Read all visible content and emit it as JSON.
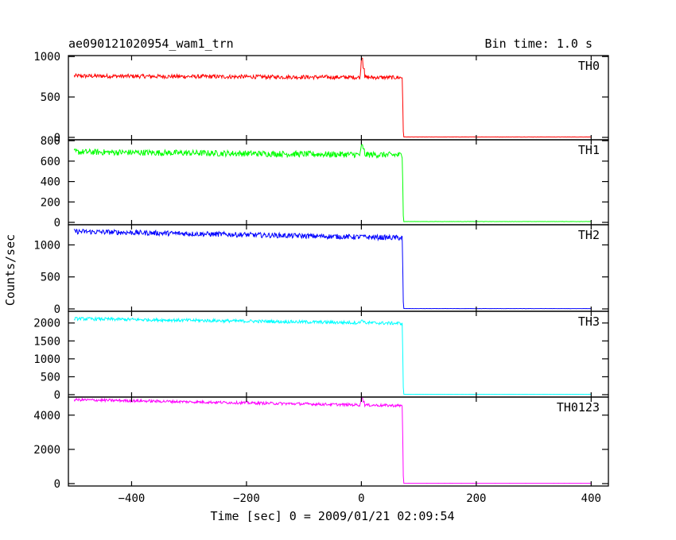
{
  "header": {
    "title": "ae090121020954_wam1_trn",
    "bin_time": "Bin time: 1.0 s"
  },
  "chart_data": {
    "type": "line",
    "title": "ae090121020954_wam1_trn",
    "xlabel": "Time [sec] 0 = 2009/01/21 02:09:54",
    "ylabel": "Counts/sec",
    "xlim": [
      -510,
      430
    ],
    "x_ticks": [
      -400,
      -200,
      0,
      200,
      400
    ],
    "x_tick_labels": [
      "−400",
      "−200",
      "0",
      "200",
      "400"
    ],
    "shared_x": {
      "start": -500,
      "step": 1,
      "end": 400,
      "drop_time": 72,
      "spike_time": 0
    },
    "series": [
      {
        "name": "TH0",
        "color": "#ff0000",
        "ylim": [
          0,
          1000
        ],
        "y_ticks": [
          0,
          500,
          1000
        ],
        "pre_level_start": 760,
        "pre_level_end": 740,
        "noise": 25,
        "spike_peak": 980,
        "post_level": 5
      },
      {
        "name": "TH1",
        "color": "#00ff00",
        "ylim": [
          0,
          800
        ],
        "y_ticks": [
          0,
          200,
          400,
          600,
          800
        ],
        "pre_level_start": 690,
        "pre_level_end": 660,
        "noise": 30,
        "spike_peak": 760,
        "post_level": 8
      },
      {
        "name": "TH2",
        "color": "#0000ff",
        "ylim": [
          0,
          1300
        ],
        "y_ticks": [
          0,
          500,
          1000
        ],
        "pre_level_start": 1210,
        "pre_level_end": 1110,
        "noise": 40,
        "spike_peak": 1150,
        "post_level": 5
      },
      {
        "name": "TH3",
        "color": "#00ffff",
        "ylim": [
          0,
          2300
        ],
        "y_ticks": [
          0,
          500,
          1000,
          1500,
          2000
        ],
        "pre_level_start": 2120,
        "pre_level_end": 1990,
        "noise": 45,
        "spike_peak": 2080,
        "post_level": 10
      },
      {
        "name": "TH0123",
        "color": "#ff00ff",
        "ylim": [
          0,
          5000
        ],
        "y_ticks": [
          0,
          2000,
          4000
        ],
        "pre_level_start": 4900,
        "pre_level_end": 4550,
        "noise": 80,
        "spike_peak": 5000,
        "post_level": 20
      }
    ]
  }
}
